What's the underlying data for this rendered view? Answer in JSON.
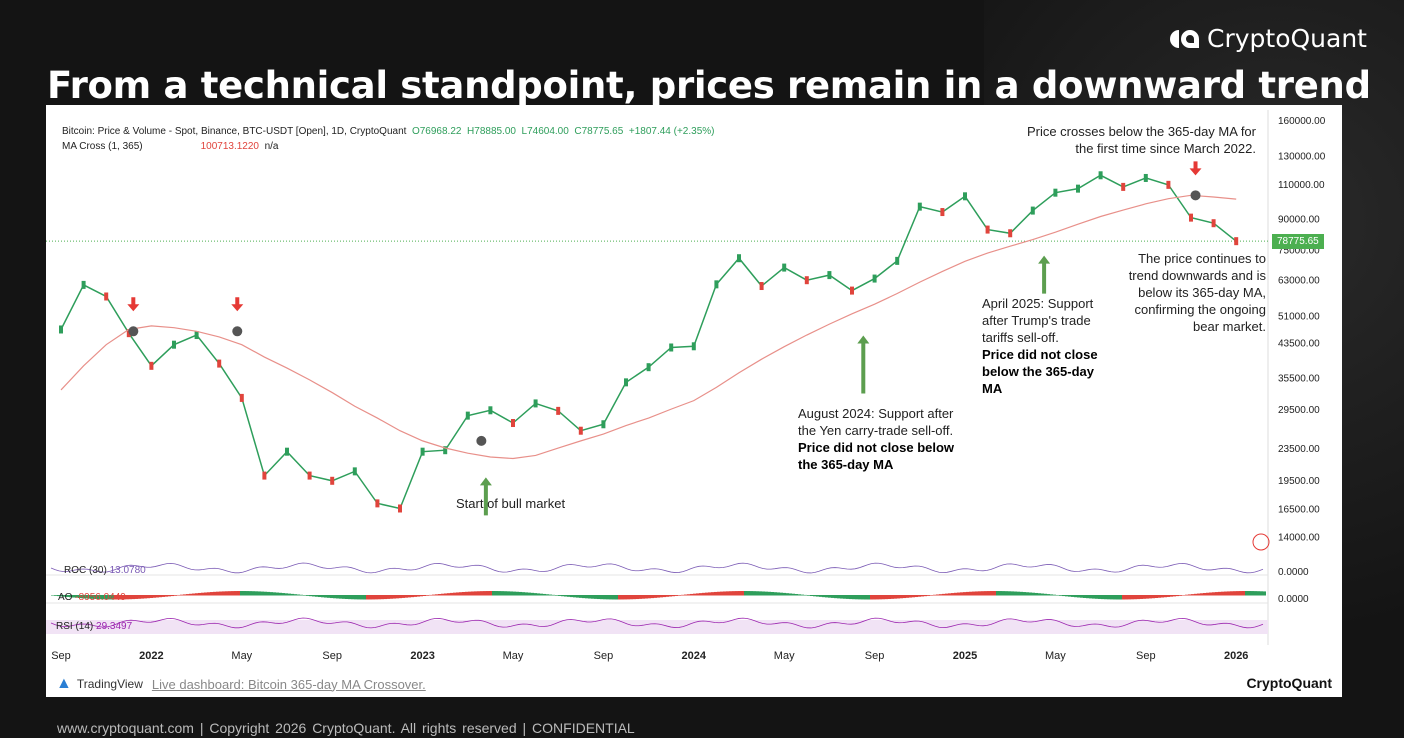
{
  "header": {
    "title": "From a technical standpoint, prices remain in a downward trend",
    "brand": "CryptoQuant"
  },
  "legend": {
    "series": "Bitcoin: Price & Volume - Spot, Binance, BTC-USDT [Open], 1D, CryptoQuant",
    "open": "O76968.22",
    "high": "H78885.00",
    "low": "L74604.00",
    "close": "C78775.65",
    "change": "+1807.44 (+2.35%)",
    "ma_label": "MA Cross (1, 365)",
    "ma_value": "100713.1220",
    "ma_na": "n/a"
  },
  "indicators": {
    "roc": "ROC (30)",
    "roc_val": "13.0780",
    "ao": "AO",
    "ao_val": "-8956.0449",
    "rsi": "RSI (14)",
    "rsi_val": "29.3497",
    "roc_axis": "0.0000",
    "ao_axis": "0.0000"
  },
  "annotations": {
    "cross": "Price crosses below the 365-day MA for the first time since March 2022.",
    "bear": "The price continues to trend downwards and is below its 365-day MA, confirming the ongoing bear market.",
    "bull": "Start of bull market",
    "aug_text": "August 2024: Support after the Yen carry-trade sell-off.",
    "aug_bold": "Price did not close below the 365-day MA",
    "apr_text": "April 2025: Support after Trump's trade tariffs sell-off.",
    "apr_bold": "Price did not close below the 365-day MA"
  },
  "footer": {
    "tradingview": "TradingView",
    "link": "Live dashboard: Bitcoin 365-day MA Crossover.",
    "brand": "CryptoQuant",
    "text": "www.cryptoquant.com    |    Copyright 2026 CryptoQuant. All rights reserved    |    CONFIDENTIAL"
  },
  "chart_data": {
    "type": "line",
    "scale": "log",
    "current_price_label": "78775.65",
    "current_price": 78775.65,
    "y_ticks": [
      "160000.00",
      "130000.00",
      "110000.00",
      "90000.00",
      "75000.00",
      "63000.00",
      "51000.00",
      "43500.00",
      "35500.00",
      "29500.00",
      "23500.00",
      "19500.00",
      "16500.00",
      "14000.00"
    ],
    "y_tick_values": [
      160000,
      130000,
      110000,
      90000,
      75000,
      63000,
      51000,
      43500,
      35500,
      29500,
      23500,
      19500,
      16500,
      14000
    ],
    "x_ticks": [
      "Sep",
      "2022",
      "May",
      "Sep",
      "2023",
      "May",
      "Sep",
      "2024",
      "May",
      "Sep",
      "2025",
      "May",
      "Sep",
      "2026"
    ],
    "x_tick_months": [
      0,
      4,
      8,
      12,
      16,
      20,
      24,
      28,
      32,
      36,
      40,
      44,
      48,
      52
    ],
    "x_start": "2021-09",
    "series": [
      {
        "name": "BTC Price",
        "color": "#2e9e5b",
        "values": [
          47000,
          61000,
          57000,
          46000,
          38000,
          43000,
          45500,
          38500,
          31500,
          20000,
          23000,
          20000,
          19400,
          20500,
          17000,
          16500,
          23000,
          23200,
          28400,
          29300,
          27200,
          30500,
          29200,
          26000,
          27000,
          34500,
          37700,
          42300,
          42600,
          61200,
          71300,
          60600,
          67500,
          62700,
          64600,
          59000,
          63300,
          70200,
          96400,
          93400,
          102400,
          84300,
          82500,
          94200,
          104600,
          107100,
          115800,
          108200,
          114000,
          109500,
          90400,
          87500,
          78775
        ]
      },
      {
        "name": "MA Cross (1, 365)",
        "color": "#e8908a",
        "values": [
          33000,
          38000,
          43000,
          47000,
          48000,
          47500,
          46500,
          45000,
          43000,
          40000,
          37500,
          35000,
          32500,
          30000,
          28000,
          26000,
          24500,
          23500,
          22800,
          22300,
          22100,
          22500,
          23500,
          24500,
          25500,
          26800,
          28000,
          29500,
          31000,
          33500,
          36500,
          39500,
          42500,
          45500,
          48500,
          51500,
          54500,
          58000,
          62000,
          66000,
          70000,
          73500,
          76500,
          79500,
          83000,
          87000,
          91000,
          94500,
          98000,
          101000,
          103000,
          102000,
          100713
        ]
      }
    ],
    "crossover_markers": [
      {
        "month": 3.2,
        "price": 46500
      },
      {
        "month": 7.8,
        "price": 46500
      },
      {
        "month": 18.6,
        "price": 24500
      },
      {
        "month": 50.2,
        "price": 103000
      }
    ]
  }
}
